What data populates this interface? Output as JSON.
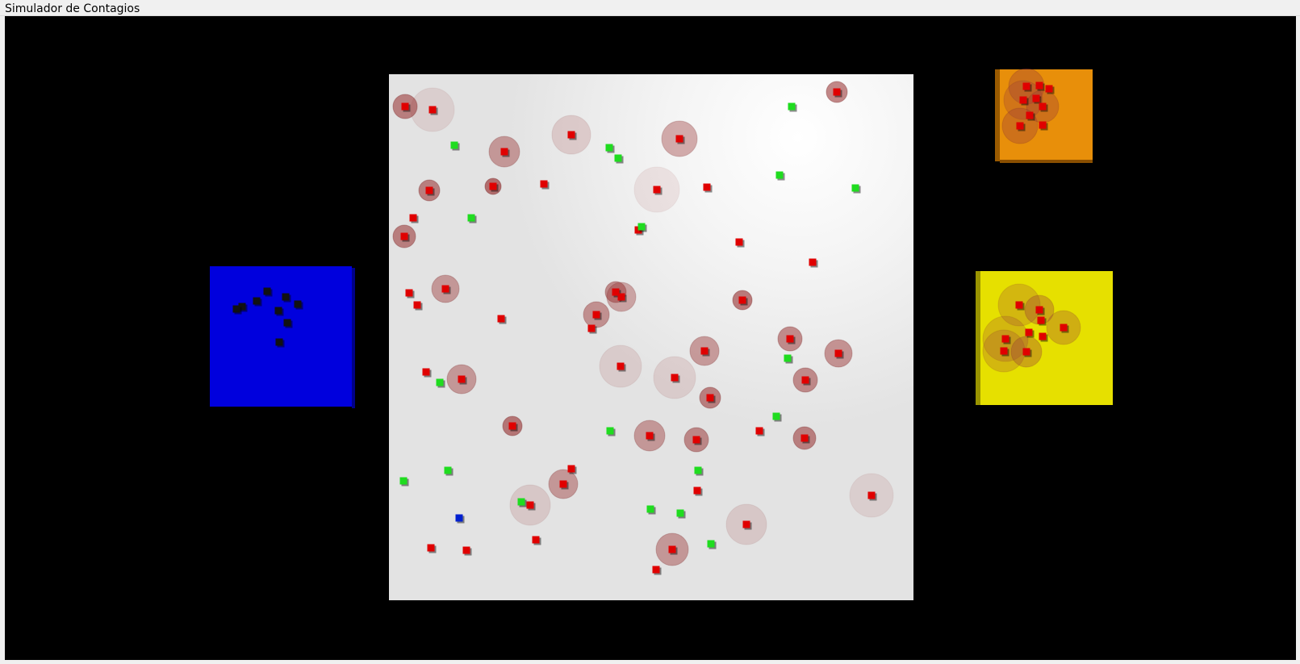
{
  "window": {
    "title": "Simulador de Contagios"
  },
  "scene": {
    "background_color": "#000000",
    "colors": {
      "main_floor": "#e6e6e6",
      "main_floor_highlight": "#ffffff",
      "blue_zone": "#0000dd",
      "orange_zone": "#e8900a",
      "yellow_zone": "#e6e000",
      "infected": "#e00000",
      "healthy": "#1fdc1f",
      "recovered": "#111111",
      "special": "#0020d0",
      "infection_halo": "#9b3a3a"
    },
    "zones": [
      "main-floor",
      "blue-zone",
      "orange-zone",
      "yellow-zone"
    ]
  }
}
